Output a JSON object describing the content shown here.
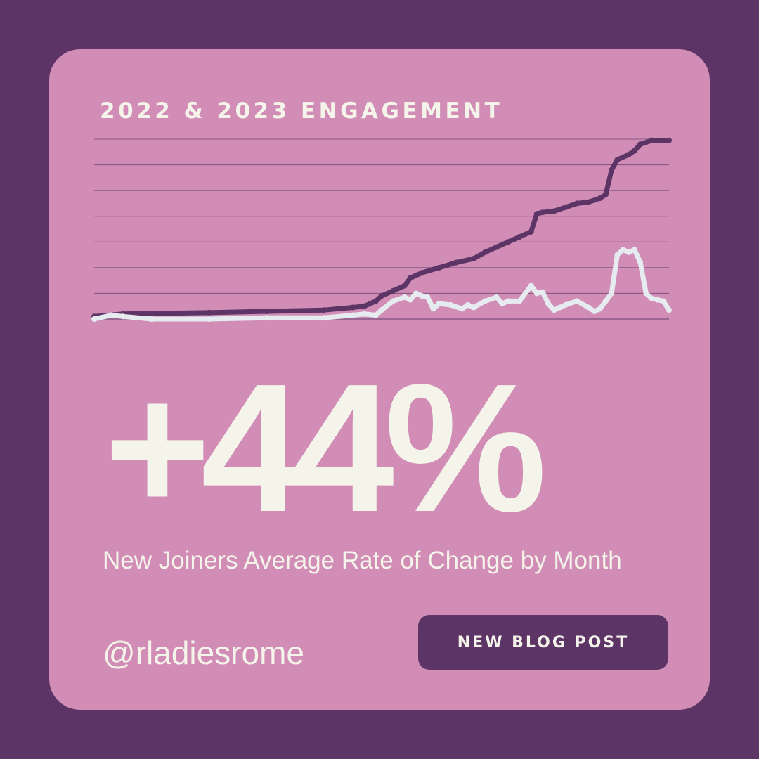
{
  "title": "2022 & 2023 ENGAGEMENT",
  "stat": "+44%",
  "subtitle": "New Joiners Average Rate of Change by Month",
  "handle": "@rladiesrome",
  "cta_label": "NEW BLOG POST",
  "colors": {
    "background": "#5c3566",
    "card": "#d18db5",
    "text": "#f5f4ea",
    "series_dark": "#5c3566",
    "series_light": "#e6ebf0",
    "gridline": "#8a5a86"
  },
  "chart_data": {
    "type": "line",
    "title": "2022 & 2023 ENGAGEMENT",
    "xlabel": "",
    "ylabel": "",
    "xlim": [
      0,
      100
    ],
    "ylim": [
      0,
      7
    ],
    "grid": true,
    "gridlines": 8,
    "series": [
      {
        "color": "#5c3566",
        "x": [
          0,
          5,
          10,
          20,
          30,
          40,
          45,
          47,
          49,
          50,
          52,
          54,
          55,
          57,
          60,
          63,
          66,
          68,
          70,
          72,
          74,
          76,
          77,
          78,
          80,
          82,
          84,
          86,
          88,
          89,
          90,
          91,
          93,
          94,
          95,
          97,
          100
        ],
        "y": [
          0.1,
          0.2,
          0.22,
          0.25,
          0.3,
          0.35,
          0.45,
          0.5,
          0.7,
          0.9,
          1.1,
          1.3,
          1.6,
          1.8,
          2.0,
          2.2,
          2.35,
          2.6,
          2.8,
          3.0,
          3.2,
          3.4,
          4.1,
          4.15,
          4.2,
          4.35,
          4.5,
          4.55,
          4.7,
          4.85,
          5.8,
          6.2,
          6.4,
          6.55,
          6.8,
          6.95,
          6.95
        ]
      },
      {
        "color": "#e6ebf0",
        "x": [
          0,
          3,
          5,
          10,
          20,
          30,
          40,
          45,
          47,
          49,
          50,
          52,
          54,
          55,
          56,
          57,
          58,
          59,
          60,
          62,
          64,
          65,
          66,
          68,
          70,
          71,
          72,
          74,
          76,
          77,
          78,
          79,
          80,
          81,
          82,
          84,
          86,
          87,
          88,
          89,
          90,
          91,
          92,
          93,
          94,
          95,
          96,
          97,
          98,
          99,
          100
        ],
        "y": [
          0.0,
          0.15,
          0.1,
          0.0,
          0.0,
          0.05,
          0.05,
          0.15,
          0.2,
          0.15,
          0.35,
          0.7,
          0.85,
          0.75,
          1.0,
          0.9,
          0.85,
          0.4,
          0.6,
          0.55,
          0.4,
          0.55,
          0.45,
          0.7,
          0.85,
          0.6,
          0.7,
          0.7,
          1.3,
          1.0,
          1.05,
          0.6,
          0.35,
          0.45,
          0.55,
          0.7,
          0.45,
          0.3,
          0.4,
          0.7,
          1.0,
          2.5,
          2.7,
          2.6,
          2.7,
          2.2,
          1.0,
          0.8,
          0.75,
          0.7,
          0.35
        ]
      }
    ]
  }
}
